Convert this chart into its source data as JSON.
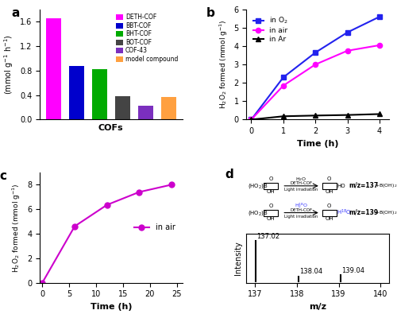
{
  "panel_a": {
    "categories": [
      "DETH-COF",
      "BBT-COF",
      "BHT-COF",
      "BOT-COF",
      "COF-43",
      "model compound"
    ],
    "values": [
      1.65,
      0.88,
      0.82,
      0.38,
      0.22,
      0.37
    ],
    "colors": [
      "#FF00FF",
      "#0000CC",
      "#00AA00",
      "#444444",
      "#7B2FBE",
      "#FFA040"
    ],
    "ylabel": "H$_2$O$_2$ formed\n(mmol g$^{-1}$ h$^{-1}$)",
    "xlabel": "COFs",
    "ylim": [
      0,
      1.8
    ],
    "yticks": [
      0.0,
      0.4,
      0.8,
      1.2,
      1.6
    ]
  },
  "panel_b": {
    "time": [
      0,
      1,
      2,
      3,
      4
    ],
    "o2": [
      0,
      2.3,
      3.65,
      4.75,
      5.6
    ],
    "air": [
      0,
      1.85,
      3.0,
      3.75,
      4.05
    ],
    "ar": [
      0,
      0.18,
      0.22,
      0.25,
      0.3
    ],
    "ylabel": "H$_2$O$_2$ formed (mmol g$^{-1}$)",
    "xlabel": "Time (h)",
    "ylim": [
      0,
      6
    ],
    "yticks": [
      0,
      1,
      2,
      3,
      4,
      5,
      6
    ],
    "labels": [
      "in O$_2$",
      "in air",
      "in Ar"
    ],
    "colors": [
      "#2222EE",
      "#FF00FF",
      "#000000"
    ],
    "markers": [
      "s",
      "o",
      "^"
    ]
  },
  "panel_c": {
    "time": [
      0,
      6,
      12,
      18,
      24
    ],
    "values": [
      0,
      4.6,
      6.35,
      7.4,
      8.0
    ],
    "ylabel": "H$_2$O$_2$ formed (mmol g$^{-1}$)",
    "xlabel": "Time (h)",
    "ylim": [
      0,
      9
    ],
    "yticks": [
      0,
      2,
      4,
      6,
      8
    ],
    "label": "in air",
    "color": "#CC00CC",
    "marker": "o"
  },
  "panel_d": {
    "peaks": [
      137.02,
      138.04,
      139.04
    ],
    "intensities": [
      100,
      12,
      15
    ],
    "xlim": [
      136.8,
      140.2
    ],
    "xlabel": "m/z",
    "ylabel": "Intensity",
    "peak_labels": [
      "137.02",
      "138.04",
      "139.04"
    ],
    "xticks": [
      137,
      138,
      139,
      140
    ]
  }
}
